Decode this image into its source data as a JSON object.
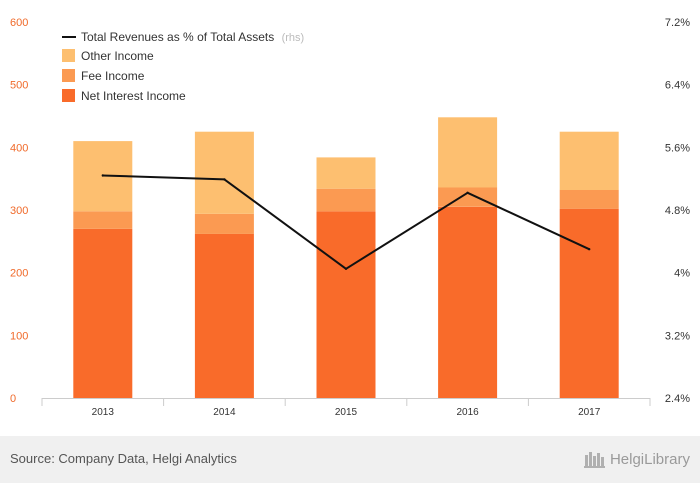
{
  "chart_data": {
    "type": "bar",
    "stacked": true,
    "categories": [
      "2013",
      "2014",
      "2015",
      "2016",
      "2017"
    ],
    "series": [
      {
        "name": "Net Interest Income",
        "values": [
          270,
          262,
          298,
          305,
          302
        ],
        "color": "#f96b2a"
      },
      {
        "name": "Fee Income",
        "values": [
          28,
          32,
          36,
          31,
          30
        ],
        "color": "#fb9a52"
      },
      {
        "name": "Other Income",
        "values": [
          112,
          131,
          50,
          112,
          93
        ],
        "color": "#fdbf70"
      }
    ],
    "line_series": {
      "name": "Total Revenues as % of Total Assets",
      "legend_suffix": "(rhs)",
      "axis": "right",
      "values": [
        5.24,
        5.19,
        4.05,
        5.02,
        4.3
      ],
      "color": "#111111"
    },
    "left_axis": {
      "ylim": [
        0,
        600
      ],
      "ticks": [
        0,
        100,
        200,
        300,
        400,
        500,
        600
      ],
      "tick_labels": [
        "0",
        "100",
        "200",
        "300",
        "400",
        "500",
        "600"
      ],
      "color": "#f06a2a"
    },
    "right_axis": {
      "ylim": [
        2.4,
        7.2
      ],
      "ticks": [
        2.4,
        3.2,
        4.0,
        4.8,
        5.6,
        6.4,
        7.2
      ],
      "tick_labels": [
        "2.4%",
        "3.2%",
        "4%",
        "4.8%",
        "5.6%",
        "6.4%",
        "7.2%"
      ]
    },
    "legend_position": "top-left",
    "grid": false
  },
  "footer": {
    "source": "Source: Company Data, Helgi Analytics",
    "brand": "HelgiLibrary"
  }
}
